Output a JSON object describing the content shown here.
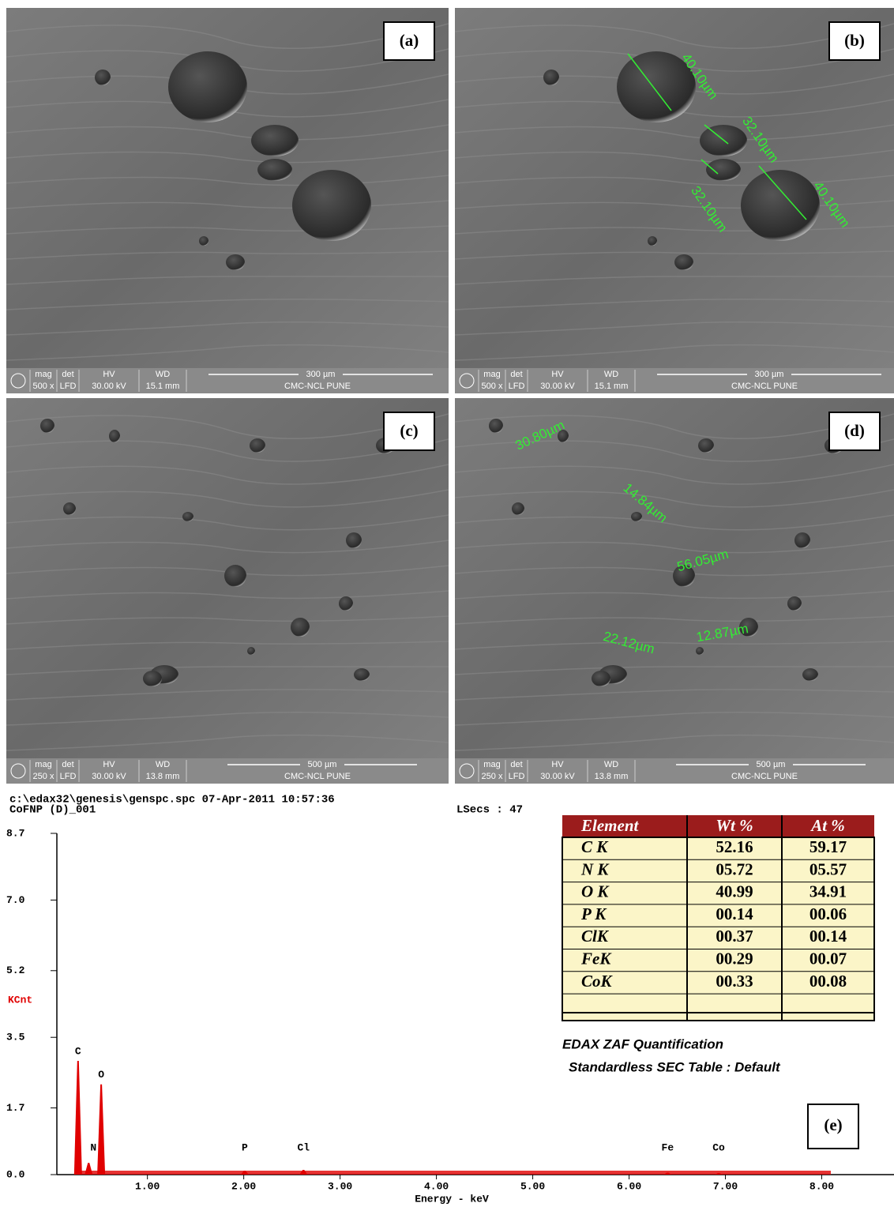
{
  "panels": [
    {
      "label": "(a)",
      "annotations": [],
      "info": {
        "headers": [
          "mag",
          "det",
          "HV",
          "WD"
        ],
        "values": [
          "500 x",
          "LFD",
          "30.00 kV",
          "15.1 mm"
        ],
        "scale": "300 µm",
        "lab": "CMC-NCL PUNE"
      }
    },
    {
      "label": "(b)",
      "annotations": [
        "40.10µm",
        "32.10µm",
        "32.10µm",
        "40.10µm"
      ],
      "info": {
        "headers": [
          "mag",
          "det",
          "HV",
          "WD"
        ],
        "values": [
          "500 x",
          "LFD",
          "30.00 kV",
          "15.1 mm"
        ],
        "scale": "300 µm",
        "lab": "CMC-NCL PUNE"
      }
    },
    {
      "label": "(c)",
      "annotations": [],
      "info": {
        "headers": [
          "mag",
          "det",
          "HV",
          "WD"
        ],
        "values": [
          "250 x",
          "LFD",
          "30.00 kV",
          "13.8 mm"
        ],
        "scale": "500 µm",
        "lab": "CMC-NCL PUNE"
      }
    },
    {
      "label": "(d)",
      "annotations": [
        "30.80µm",
        "14.84µm",
        "56.05µm",
        "22.12µm",
        "12.87µm"
      ],
      "info": {
        "headers": [
          "mag",
          "det",
          "HV",
          "WD"
        ],
        "values": [
          "250 x",
          "LFD",
          "30.00 kV",
          "13.8 mm"
        ],
        "scale": "500 µm",
        "lab": "CMC-NCL PUNE"
      }
    }
  ],
  "spectrum": {
    "file": "c:\\edax32\\genesis\\genspc.spc  07-Apr-2011 10:57:36",
    "sample": "CoFNP (D)_001",
    "lsecs": "LSecs : 47",
    "y_title": "KCnt",
    "x_title": "Energy - keV",
    "ylim": [
      0,
      8.7
    ],
    "yticks": [
      8.7,
      {
        "value": 7,
        "label": "7.0"
      },
      5.2,
      3.5,
      1.7,
      {
        "value": 0,
        "label": "0.0"
      }
    ],
    "xlim": [
      0.06,
      8.75
    ],
    "xticks": [
      {
        "value": 1,
        "label": "1.00"
      },
      {
        "value": 2,
        "label": "2.00"
      },
      {
        "value": 3,
        "label": "3.00"
      },
      {
        "value": 4,
        "label": "4.00"
      },
      {
        "value": 5,
        "label": "5.00"
      },
      {
        "value": 6,
        "label": "6.00"
      },
      {
        "value": 7,
        "label": "7.00"
      },
      {
        "value": 8,
        "label": "8.00"
      }
    ],
    "peaks": [
      {
        "label": "C",
        "energy": 0.28,
        "counts": 2.9
      },
      {
        "label": "N",
        "energy": 0.39,
        "counts": 0.3
      },
      {
        "label": "O",
        "energy": 0.52,
        "counts": 2.3
      },
      {
        "label": "P",
        "energy": 2.01,
        "counts": 0.1
      },
      {
        "label": "Cl",
        "energy": 2.62,
        "counts": 0.12
      },
      {
        "label": "Fe",
        "energy": 6.4,
        "counts": 0.05
      },
      {
        "label": "Co",
        "energy": 6.93,
        "counts": 0.04
      }
    ],
    "color": "#e00000"
  },
  "table": {
    "columns": [
      "Element",
      "Wt %",
      "At %"
    ],
    "rows": [
      [
        "C K",
        "52.16",
        "59.17"
      ],
      [
        "N K",
        "05.72",
        "05.57"
      ],
      [
        "O K",
        "40.99",
        "34.91"
      ],
      [
        "P K",
        "00.14",
        "00.06"
      ],
      [
        "ClK",
        "00.37",
        "00.14"
      ],
      [
        "FeK",
        "00.29",
        "00.07"
      ],
      [
        "CoK",
        "00.33",
        "00.08"
      ]
    ]
  },
  "footnote": [
    "EDAX ZAF Quantification",
    "Standardless  SEC Table : Default"
  ],
  "label": "(e)"
}
